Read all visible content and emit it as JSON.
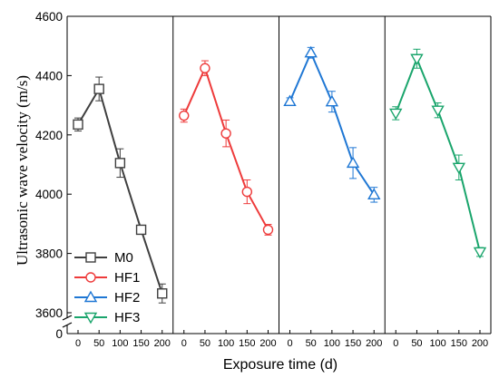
{
  "chart_data": {
    "type": "line",
    "ylabel": "Ultrasonic wave velocity (m/s)",
    "xlabel": "Exposure time (d)",
    "ylim": [
      3600,
      4600
    ],
    "yticks": [
      "3600",
      "3800",
      "4000",
      "4200",
      "4400",
      "4600"
    ],
    "x": [
      0,
      50,
      100,
      150,
      200
    ],
    "xtick_labels": [
      "0",
      "50",
      "100",
      "150",
      "200"
    ],
    "axis_break": "y-axis break below 3600",
    "legend_position": "bottom-left",
    "grid": false,
    "series": [
      {
        "name": "M0",
        "color": "#3f3f3f",
        "marker": "square",
        "values": [
          4235,
          4355,
          4105,
          3880,
          3665
        ],
        "errors": [
          22,
          40,
          48,
          15,
          32
        ]
      },
      {
        "name": "HF1",
        "color": "#ee3b3b",
        "marker": "circle",
        "values": [
          4265,
          4425,
          4205,
          4008,
          3880
        ],
        "errors": [
          22,
          25,
          45,
          40,
          18
        ]
      },
      {
        "name": "HF2",
        "color": "#1f77d4",
        "marker": "triangle-up",
        "values": [
          4313,
          4477,
          4312,
          4105,
          3998
        ],
        "errors": [
          12,
          18,
          35,
          52,
          25
        ]
      },
      {
        "name": "HF3",
        "color": "#1aa56c",
        "marker": "triangle-down",
        "values": [
          4273,
          4457,
          4283,
          4090,
          3805
        ],
        "errors": [
          22,
          32,
          25,
          42,
          15
        ]
      }
    ]
  }
}
